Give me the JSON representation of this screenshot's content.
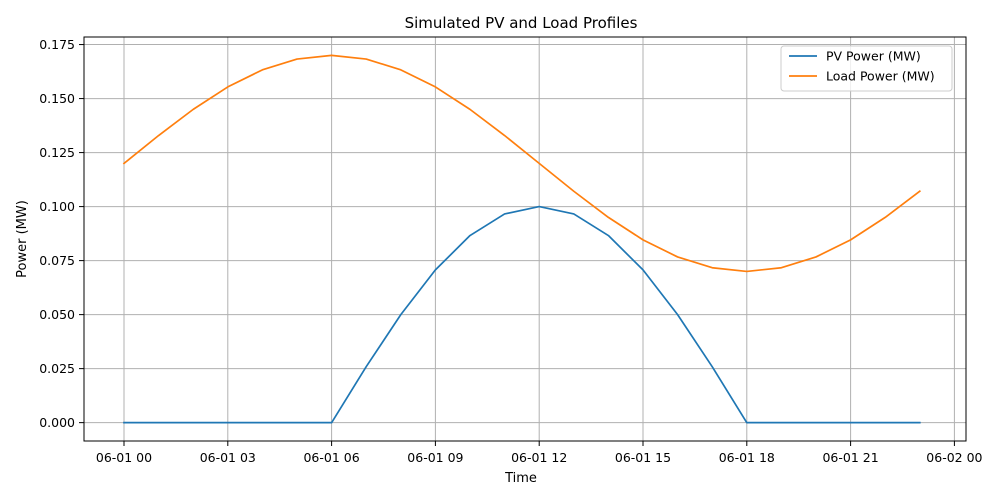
{
  "chart_data": {
    "type": "line",
    "title": "Simulated PV and Load Profiles",
    "xlabel": "Time",
    "ylabel": "Power (MW)",
    "x": [
      "06-01 00",
      "06-01 01",
      "06-01 02",
      "06-01 03",
      "06-01 04",
      "06-01 05",
      "06-01 06",
      "06-01 07",
      "06-01 08",
      "06-01 09",
      "06-01 10",
      "06-01 11",
      "06-01 12",
      "06-01 13",
      "06-01 14",
      "06-01 15",
      "06-01 16",
      "06-01 17",
      "06-01 18",
      "06-01 19",
      "06-01 20",
      "06-01 21",
      "06-01 22",
      "06-01 23"
    ],
    "xticks": [
      "06-01 00",
      "06-01 03",
      "06-01 06",
      "06-01 09",
      "06-01 12",
      "06-01 15",
      "06-01 18",
      "06-01 21",
      "06-02 00"
    ],
    "yticks": [
      "0.000",
      "0.025",
      "0.050",
      "0.075",
      "0.100",
      "0.125",
      "0.150",
      "0.175"
    ],
    "ylim": [
      -0.0085,
      0.1785
    ],
    "grid": true,
    "legend_position": "top-right",
    "series": [
      {
        "name": "PV Power (MW)",
        "color": "#1f77b4",
        "values": [
          0,
          0,
          0,
          0,
          0,
          0,
          0,
          0.0259,
          0.05,
          0.0707,
          0.0866,
          0.0966,
          0.1,
          0.0966,
          0.0866,
          0.0707,
          0.05,
          0.0259,
          0,
          0,
          0,
          0,
          0,
          0
        ]
      },
      {
        "name": "Load Power (MW)",
        "color": "#ff7f0e",
        "values": [
          0.12,
          0.1329,
          0.145,
          0.1554,
          0.1633,
          0.1683,
          0.17,
          0.1683,
          0.1633,
          0.1554,
          0.145,
          0.1329,
          0.12,
          0.1071,
          0.095,
          0.0846,
          0.0767,
          0.0717,
          0.07,
          0.0717,
          0.0767,
          0.0846,
          0.095,
          0.1071
        ]
      }
    ]
  }
}
